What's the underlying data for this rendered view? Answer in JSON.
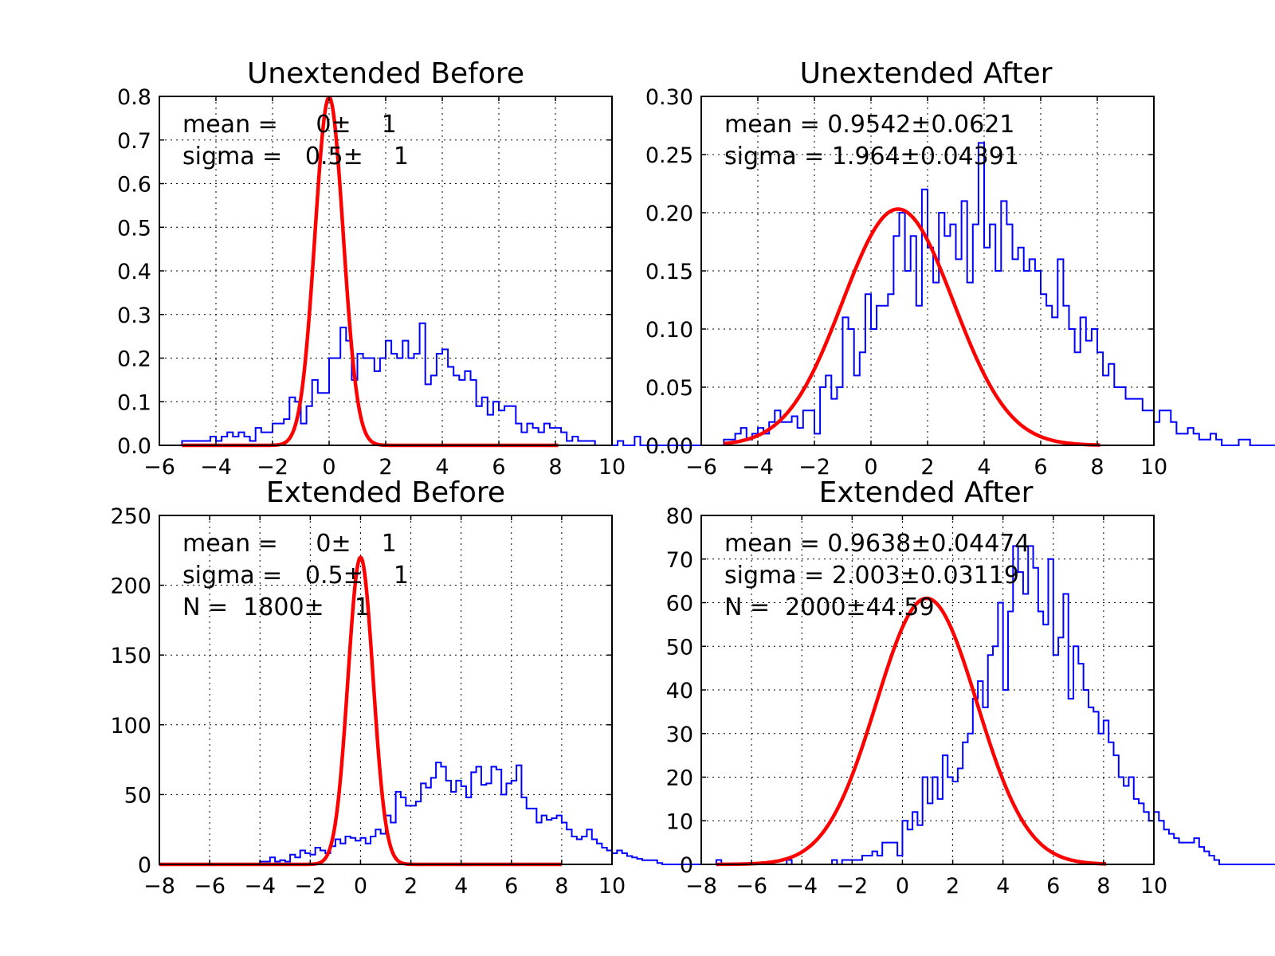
{
  "chart_data": [
    {
      "type": "line",
      "title": "Unextended Before",
      "xlim": [
        -6,
        10
      ],
      "ylim": [
        0,
        0.8
      ],
      "xticks": [
        -6,
        -4,
        -2,
        0,
        2,
        4,
        6,
        8,
        10
      ],
      "xtick_labels": [
        "−6",
        "−4",
        "−2",
        "0",
        "2",
        "4",
        "6",
        "8",
        "10"
      ],
      "yticks": [
        0.0,
        0.1,
        0.2,
        0.3,
        0.4,
        0.5,
        0.6,
        0.7,
        0.8
      ],
      "ytick_labels": [
        "0.0",
        "0.1",
        "0.2",
        "0.3",
        "0.4",
        "0.5",
        "0.6",
        "0.7",
        "0.8"
      ],
      "grid": true,
      "annotations": [
        "mean =     0±    1",
        "sigma =   0.5±    1"
      ],
      "histogram": {
        "bin_start": -5.2,
        "bin_width": 0.2,
        "values": [
          0.01,
          0.01,
          0.01,
          0.01,
          0.01,
          0.02,
          0.01,
          0.02,
          0.03,
          0.02,
          0.03,
          0.02,
          0.01,
          0.04,
          0.03,
          0.03,
          0.05,
          0.05,
          0.06,
          0.11,
          0.1,
          0.05,
          0.09,
          0.15,
          0.12,
          0.12,
          0.2,
          0.2,
          0.27,
          0.24,
          0.15,
          0.21,
          0.2,
          0.2,
          0.17,
          0.2,
          0.24,
          0.21,
          0.2,
          0.24,
          0.2,
          0.21,
          0.28,
          0.14,
          0.16,
          0.21,
          0.22,
          0.18,
          0.16,
          0.15,
          0.17,
          0.15,
          0.09,
          0.11,
          0.07,
          0.1,
          0.08,
          0.09,
          0.09,
          0.05,
          0.03,
          0.05,
          0.04,
          0.03,
          0.05,
          0.04,
          0.04,
          0.03,
          0.01,
          0.02,
          0.01,
          0.01,
          0.01,
          0.0,
          0.0,
          0.0,
          0.0,
          0.01,
          0.0,
          0.0,
          0.02,
          0.0,
          0.0,
          0.0,
          0.0,
          0.0,
          0.0,
          0.0,
          0.0,
          0.0,
          0.0,
          0.0,
          0.0,
          0.0
        ]
      },
      "fit": {
        "mean": 0,
        "sigma": 0.5,
        "amplitude": 0.7979,
        "x_range": [
          -5.2,
          8.1
        ]
      }
    },
    {
      "type": "line",
      "title": "Unextended After",
      "xlim": [
        -6,
        10
      ],
      "ylim": [
        0,
        0.3
      ],
      "xticks": [
        -6,
        -4,
        -2,
        0,
        2,
        4,
        6,
        8,
        10
      ],
      "xtick_labels": [
        "−6",
        "−4",
        "−2",
        "0",
        "2",
        "4",
        "6",
        "8",
        "10"
      ],
      "yticks": [
        0.0,
        0.05,
        0.1,
        0.15,
        0.2,
        0.25,
        0.3
      ],
      "ytick_labels": [
        "0.00",
        "0.05",
        "0.10",
        "0.15",
        "0.20",
        "0.25",
        "0.30"
      ],
      "grid": true,
      "annotations": [
        "mean = 0.9542±0.0621",
        "sigma = 1.964±0.04391"
      ],
      "histogram": {
        "bin_start": -5.2,
        "bin_width": 0.2,
        "values": [
          0.005,
          0.005,
          0.01,
          0.015,
          0.005,
          0.01,
          0.015,
          0.01,
          0.02,
          0.03,
          0.02,
          0.02,
          0.025,
          0.015,
          0.03,
          0.03,
          0.01,
          0.05,
          0.06,
          0.04,
          0.05,
          0.11,
          0.1,
          0.06,
          0.08,
          0.13,
          0.1,
          0.12,
          0.12,
          0.13,
          0.18,
          0.2,
          0.15,
          0.18,
          0.12,
          0.22,
          0.17,
          0.14,
          0.2,
          0.18,
          0.19,
          0.16,
          0.21,
          0.14,
          0.19,
          0.26,
          0.17,
          0.19,
          0.15,
          0.21,
          0.19,
          0.16,
          0.17,
          0.15,
          0.16,
          0.15,
          0.13,
          0.12,
          0.11,
          0.16,
          0.12,
          0.1,
          0.08,
          0.11,
          0.09,
          0.1,
          0.08,
          0.06,
          0.07,
          0.05,
          0.05,
          0.04,
          0.04,
          0.04,
          0.03,
          0.03,
          0.02,
          0.03,
          0.03,
          0.02,
          0.01,
          0.01,
          0.015,
          0.01,
          0.005,
          0.005,
          0.01,
          0.005,
          0.0,
          0.0,
          0.0,
          0.005,
          0.005,
          0.0,
          0.0,
          0.0,
          0.0,
          0.0,
          0.0,
          0.0,
          0.0,
          0.0,
          0.0,
          0.0,
          0.0,
          0.0,
          0.0,
          0.0,
          0.0,
          0.0,
          0.0,
          0.0,
          0.0,
          0.0,
          0.0,
          0.0,
          0.0,
          0.0,
          0.0,
          0.0,
          0.0,
          0.0,
          0.0,
          0.0,
          0.0,
          0.0,
          0.0,
          0.0,
          0.0,
          0.0,
          0.0,
          0.0,
          0.0,
          0.005
        ]
      },
      "fit": {
        "mean": 0.9542,
        "sigma": 1.964,
        "amplitude": 0.2031,
        "x_range": [
          -5.2,
          8.1
        ]
      }
    },
    {
      "type": "line",
      "title": "Extended Before",
      "xlim": [
        -8,
        10
      ],
      "ylim": [
        0,
        250
      ],
      "xticks": [
        -8,
        -6,
        -4,
        -2,
        0,
        2,
        4,
        6,
        8,
        10
      ],
      "xtick_labels": [
        "−8",
        "−6",
        "−4",
        "−2",
        "0",
        "2",
        "4",
        "6",
        "8",
        "10"
      ],
      "yticks": [
        0,
        50,
        100,
        150,
        200,
        250
      ],
      "ytick_labels": [
        "0",
        "50",
        "100",
        "150",
        "200",
        "250"
      ],
      "grid": true,
      "annotations": [
        "mean =     0±    1",
        "sigma =   0.5±    1",
        "N =  1800±    1"
      ],
      "histogram": {
        "bin_start": -7.4,
        "bin_width": 0.2,
        "values": [
          0,
          0,
          0,
          0,
          0,
          0,
          0,
          0,
          0,
          0,
          0,
          0,
          0,
          0,
          0,
          0,
          0,
          2,
          2,
          5,
          2,
          3,
          2,
          7,
          5,
          10,
          8,
          7,
          12,
          10,
          8,
          13,
          18,
          15,
          20,
          19,
          17,
          19,
          15,
          20,
          25,
          22,
          35,
          30,
          52,
          48,
          42,
          42,
          45,
          58,
          55,
          62,
          73,
          70,
          60,
          52,
          60,
          56,
          48,
          66,
          70,
          57,
          58,
          70,
          68,
          50,
          58,
          60,
          71,
          48,
          40,
          40,
          30,
          35,
          32,
          33,
          35,
          30,
          25,
          20,
          18,
          20,
          25,
          18,
          15,
          12,
          10,
          8,
          10,
          8,
          6,
          5,
          4,
          3,
          3,
          3,
          1,
          0,
          0,
          0,
          0,
          0,
          0,
          0,
          0,
          0,
          0,
          0,
          0,
          0,
          0,
          0,
          0,
          0
        ]
      },
      "fit": {
        "mean": 0,
        "sigma": 0.5,
        "amplitude": 220,
        "x_range": [
          -8,
          8
        ]
      }
    },
    {
      "type": "line",
      "title": "Extended After",
      "xlim": [
        -8,
        10
      ],
      "ylim": [
        0,
        80
      ],
      "xticks": [
        -8,
        -6,
        -4,
        -2,
        0,
        2,
        4,
        6,
        8,
        10
      ],
      "xtick_labels": [
        "−8",
        "−6",
        "−4",
        "−2",
        "0",
        "2",
        "4",
        "6",
        "8",
        "10"
      ],
      "yticks": [
        0,
        10,
        20,
        30,
        40,
        50,
        60,
        70,
        80
      ],
      "ytick_labels": [
        "0",
        "10",
        "20",
        "30",
        "40",
        "50",
        "60",
        "70",
        "80"
      ],
      "grid": true,
      "annotations": [
        "mean = 0.9638±0.04474",
        "sigma = 2.003±0.03119",
        "N =  2000±44.59"
      ],
      "histogram": {
        "bin_start": -7.4,
        "bin_width": 0.2,
        "values": [
          1,
          0,
          0,
          0,
          0,
          0,
          0,
          0,
          0,
          0,
          0,
          0,
          0,
          0,
          1,
          0,
          0,
          0,
          0,
          0,
          0,
          0,
          0,
          1,
          0,
          1,
          1,
          1,
          1,
          2,
          2,
          3,
          2,
          5,
          5,
          5,
          2,
          10,
          8,
          12,
          9,
          20,
          14,
          20,
          15,
          25,
          20,
          19,
          22,
          28,
          30,
          38,
          42,
          36,
          48,
          50,
          60,
          40,
          58,
          73,
          67,
          62,
          73,
          68,
          58,
          55,
          70,
          48,
          52,
          62,
          38,
          50,
          46,
          40,
          36,
          35,
          30,
          33,
          28,
          25,
          20,
          18,
          20,
          15,
          14,
          12,
          10,
          12,
          10,
          8,
          7,
          6,
          5,
          5,
          5,
          6,
          4,
          3,
          2,
          1,
          0,
          0,
          0,
          0,
          0,
          0,
          0,
          0,
          0,
          0,
          0,
          0,
          1,
          0,
          0,
          0,
          0,
          0
        ]
      },
      "fit": {
        "mean": 0.9638,
        "sigma": 2.003,
        "amplitude": 61,
        "x_range": [
          -7.4,
          8.1
        ]
      }
    }
  ]
}
